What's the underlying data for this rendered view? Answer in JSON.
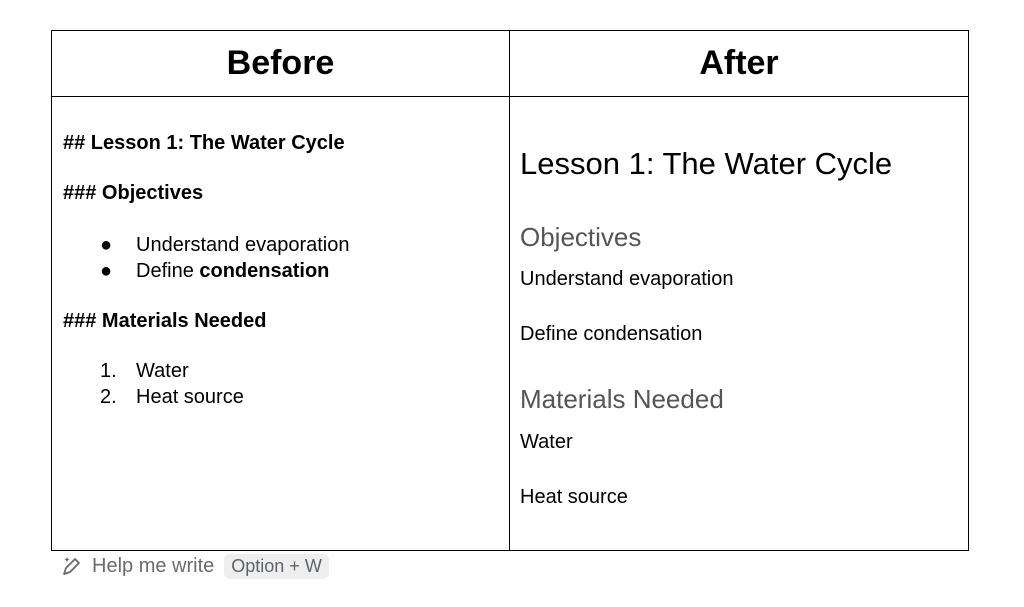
{
  "table": {
    "headers": {
      "before": "Before",
      "after": "After"
    },
    "before": {
      "heading_lesson": "## Lesson 1: The Water Cycle",
      "heading_objectives": "### Objectives",
      "objectives": [
        {
          "marker": "●",
          "text": "Understand evaporation",
          "bold": ""
        },
        {
          "marker": "●",
          "text": "Define ",
          "bold": "condensation"
        }
      ],
      "heading_materials": "### Materials Needed",
      "materials": [
        {
          "marker": "1.",
          "text": "Water"
        },
        {
          "marker": "2.",
          "text": "Heat source"
        }
      ]
    },
    "after": {
      "title": "Lesson 1: The Water Cycle",
      "objectives_heading": "Objectives",
      "objectives": [
        "Understand evaporation",
        "Define condensation"
      ],
      "materials_heading": "Materials Needed",
      "materials": [
        "Water",
        "Heat source"
      ]
    }
  },
  "help": {
    "icon": "pencil-sparkle-icon",
    "label": "Help me write",
    "shortcut": "Option + W"
  }
}
